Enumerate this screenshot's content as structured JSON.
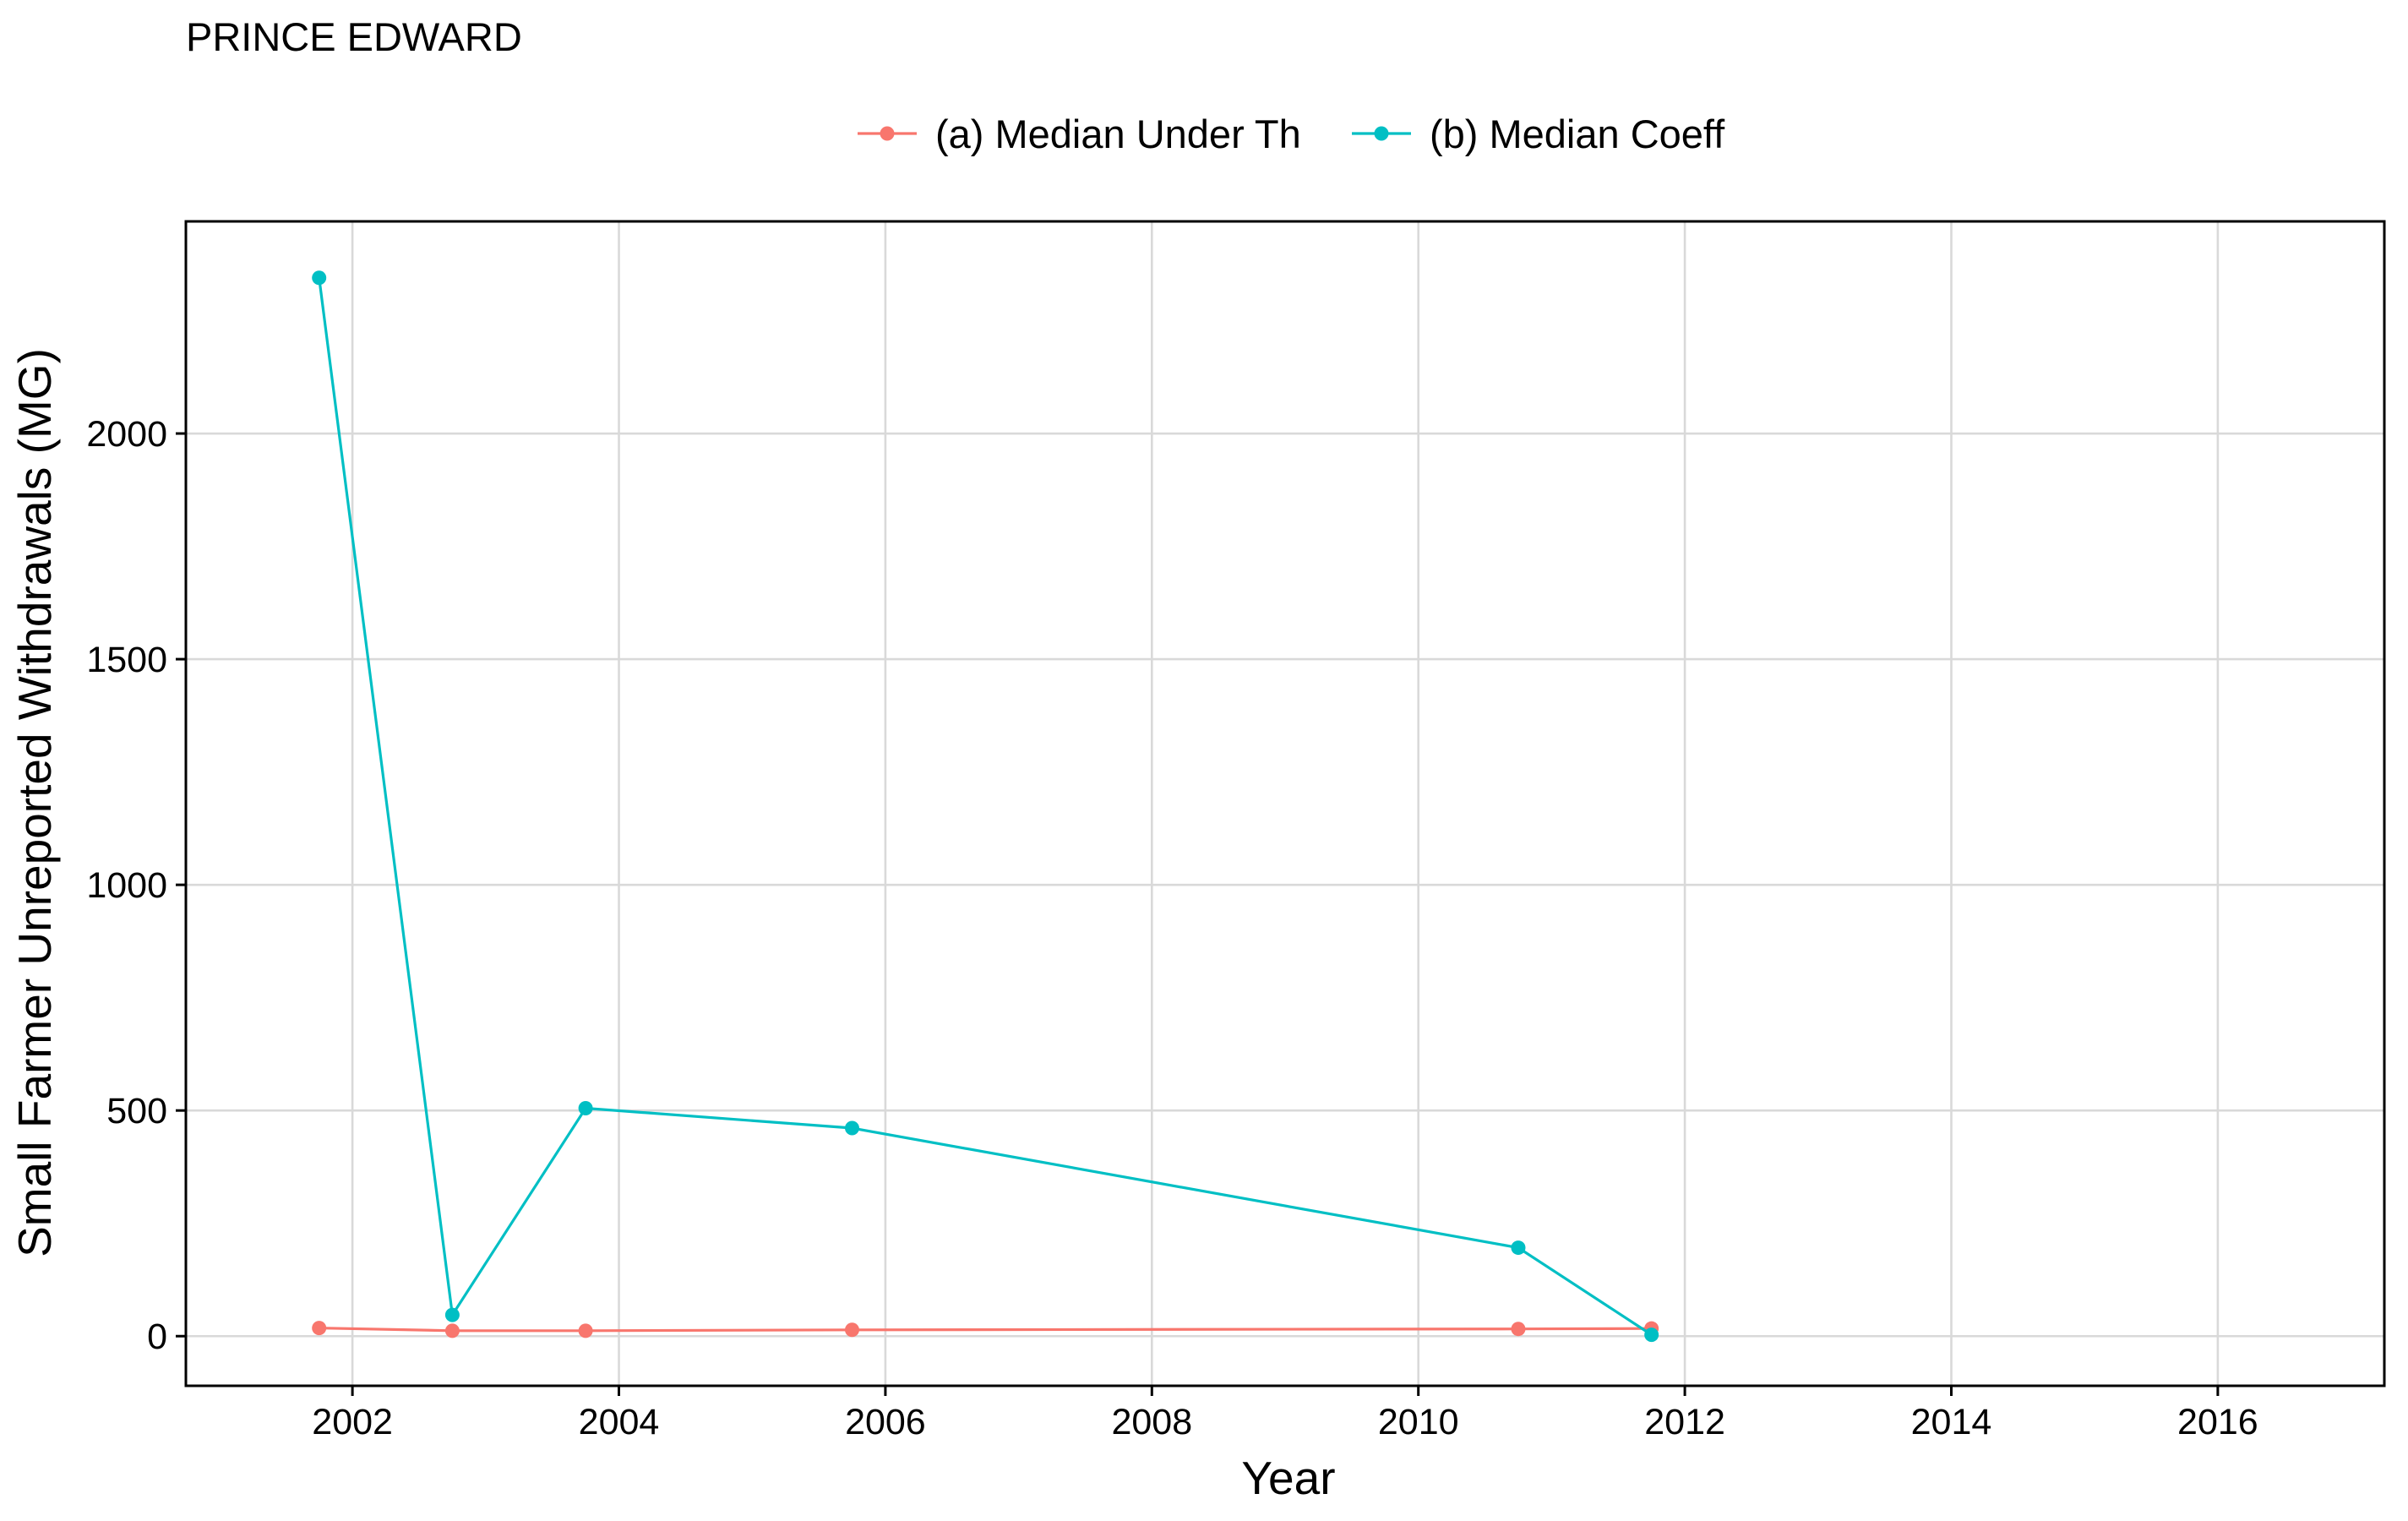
{
  "chart_data": {
    "type": "line",
    "title": "PRINCE EDWARD",
    "xlabel": "Year",
    "ylabel": "Small Farmer Unreported Withdrawals (MG)",
    "xlim": [
      2000.75,
      2017.25
    ],
    "ylim": [
      -110,
      2470
    ],
    "x_ticks": [
      2002,
      2004,
      2006,
      2008,
      2010,
      2012,
      2014,
      2016
    ],
    "y_ticks": [
      0,
      500,
      1000,
      1500,
      2000
    ],
    "x_tick_labels": [
      "2002",
      "2004",
      "2006",
      "2008",
      "2010",
      "2012",
      "2014",
      "2016"
    ],
    "y_tick_labels": [
      "0",
      "500",
      "1000",
      "1500",
      "2000"
    ],
    "grid": true,
    "legend_position": "top",
    "series": [
      {
        "name": "(a) Median Under Th",
        "color": "#F8766D",
        "x": [
          2001.75,
          2002.75,
          2003.75,
          2005.75,
          2010.75,
          2011.75
        ],
        "y": [
          18,
          12,
          12,
          14,
          16,
          17
        ]
      },
      {
        "name": "(b) Median Coeff",
        "color": "#00BFC4",
        "x": [
          2001.75,
          2002.75,
          2003.75,
          2005.75,
          2010.75,
          2011.75
        ],
        "y": [
          2345,
          47,
          505,
          461,
          196,
          3
        ]
      }
    ]
  }
}
